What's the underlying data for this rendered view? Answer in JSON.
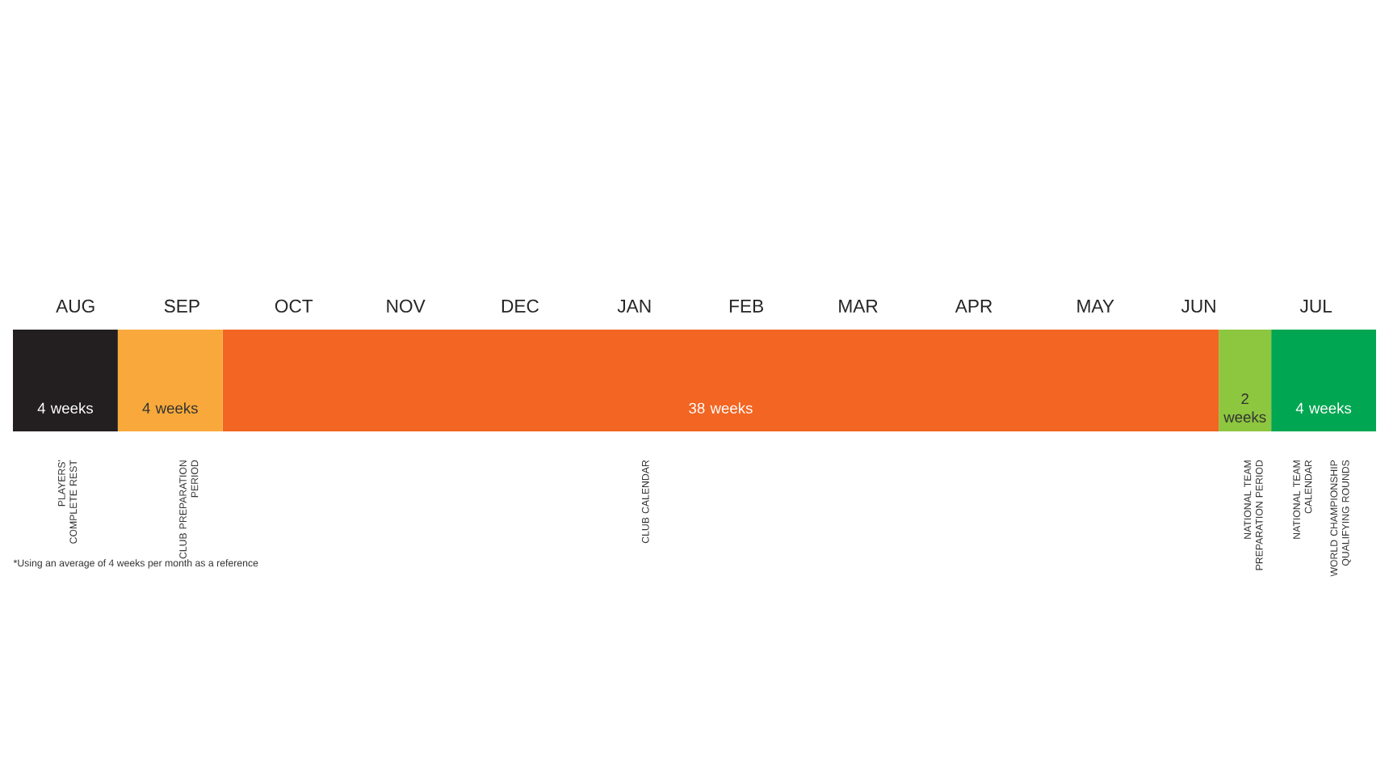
{
  "chart_data": {
    "type": "bar",
    "orientation": "horizontal",
    "stacked": true,
    "categories": [
      null
    ],
    "series": [
      {
        "color": "#231f20",
        "values": [
          4
        ],
        "value_labels": [
          "4 weeks"
        ]
      },
      {
        "color": "#f9a93b",
        "values": [
          4
        ],
        "value_labels": [
          "4 weeks"
        ]
      },
      {
        "color": "#f26522",
        "values": [
          38
        ],
        "value_labels": [
          "38 weeks"
        ]
      },
      {
        "color": "#8dc63f",
        "values": [
          2
        ],
        "value_labels": [
          "2 weeks"
        ]
      },
      {
        "color": "#00a651",
        "values": [
          4
        ],
        "value_labels": [
          "4 weeks"
        ]
      }
    ],
    "annotations": [
      "AUG",
      "SEP",
      "OCT",
      "NOV",
      "DEC",
      "JAN",
      "FEB",
      "MAR",
      "APR",
      "MAY",
      "JUN",
      "JUL",
      "PLAYERS' COMPLETE REST",
      "CLUB PREPARATION PERIOD",
      "CLUB CALENDAR",
      "NATIONAL TEAM PREPARATION PERIOD",
      "NATIONAL TEAM CALENDAR",
      "WORLD CHAMPIONSHIP QUALIFYING ROUNDS",
      "*Using an average of 4 weeks per month as a reference"
    ]
  }
}
